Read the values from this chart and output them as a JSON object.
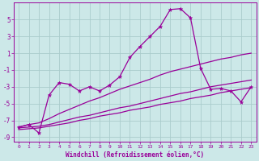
{
  "xlabel": "Windchill (Refroidissement éolien,°C)",
  "x": [
    0,
    1,
    2,
    3,
    4,
    5,
    6,
    7,
    8,
    9,
    10,
    11,
    12,
    13,
    14,
    15,
    16,
    17,
    18,
    19,
    20,
    21,
    22,
    23
  ],
  "y_main": [
    -7.8,
    -7.5,
    -8.5,
    -4.0,
    -2.5,
    -2.7,
    -3.5,
    -3.0,
    -3.5,
    -2.8,
    -1.8,
    0.5,
    1.8,
    3.0,
    4.2,
    6.2,
    6.3,
    5.2,
    -0.8,
    -3.3,
    -3.2,
    -3.5,
    -4.8,
    -3.0
  ],
  "y_upper": [
    -7.8,
    -7.5,
    -7.3,
    -6.8,
    -6.2,
    -5.7,
    -5.2,
    -4.7,
    -4.3,
    -3.8,
    -3.3,
    -2.9,
    -2.5,
    -2.1,
    -1.6,
    -1.2,
    -0.9,
    -0.6,
    -0.3,
    0.0,
    0.3,
    0.5,
    0.8,
    1.0
  ],
  "y_mid": [
    -7.9,
    -7.8,
    -7.7,
    -7.5,
    -7.2,
    -6.9,
    -6.6,
    -6.4,
    -6.1,
    -5.8,
    -5.5,
    -5.3,
    -5.0,
    -4.7,
    -4.4,
    -4.1,
    -3.8,
    -3.6,
    -3.3,
    -3.0,
    -2.8,
    -2.6,
    -2.4,
    -2.2
  ],
  "y_lower": [
    -8.1,
    -8.0,
    -7.9,
    -7.7,
    -7.5,
    -7.3,
    -7.0,
    -6.8,
    -6.5,
    -6.3,
    -6.1,
    -5.8,
    -5.6,
    -5.4,
    -5.1,
    -4.9,
    -4.7,
    -4.4,
    -4.2,
    -4.0,
    -3.7,
    -3.5,
    -3.3,
    -3.1
  ],
  "line_color": "#990099",
  "bg_color": "#cce8e8",
  "grid_color": "#aacccc",
  "ylim": [
    -9.5,
    7.0
  ],
  "xlim": [
    -0.5,
    23.5
  ],
  "yticks": [
    5,
    3,
    1,
    -1,
    -3,
    -5,
    -7,
    -9
  ],
  "xticks": [
    0,
    1,
    2,
    3,
    4,
    5,
    6,
    7,
    8,
    9,
    10,
    11,
    12,
    13,
    14,
    15,
    16,
    17,
    18,
    19,
    20,
    21,
    22,
    23
  ]
}
